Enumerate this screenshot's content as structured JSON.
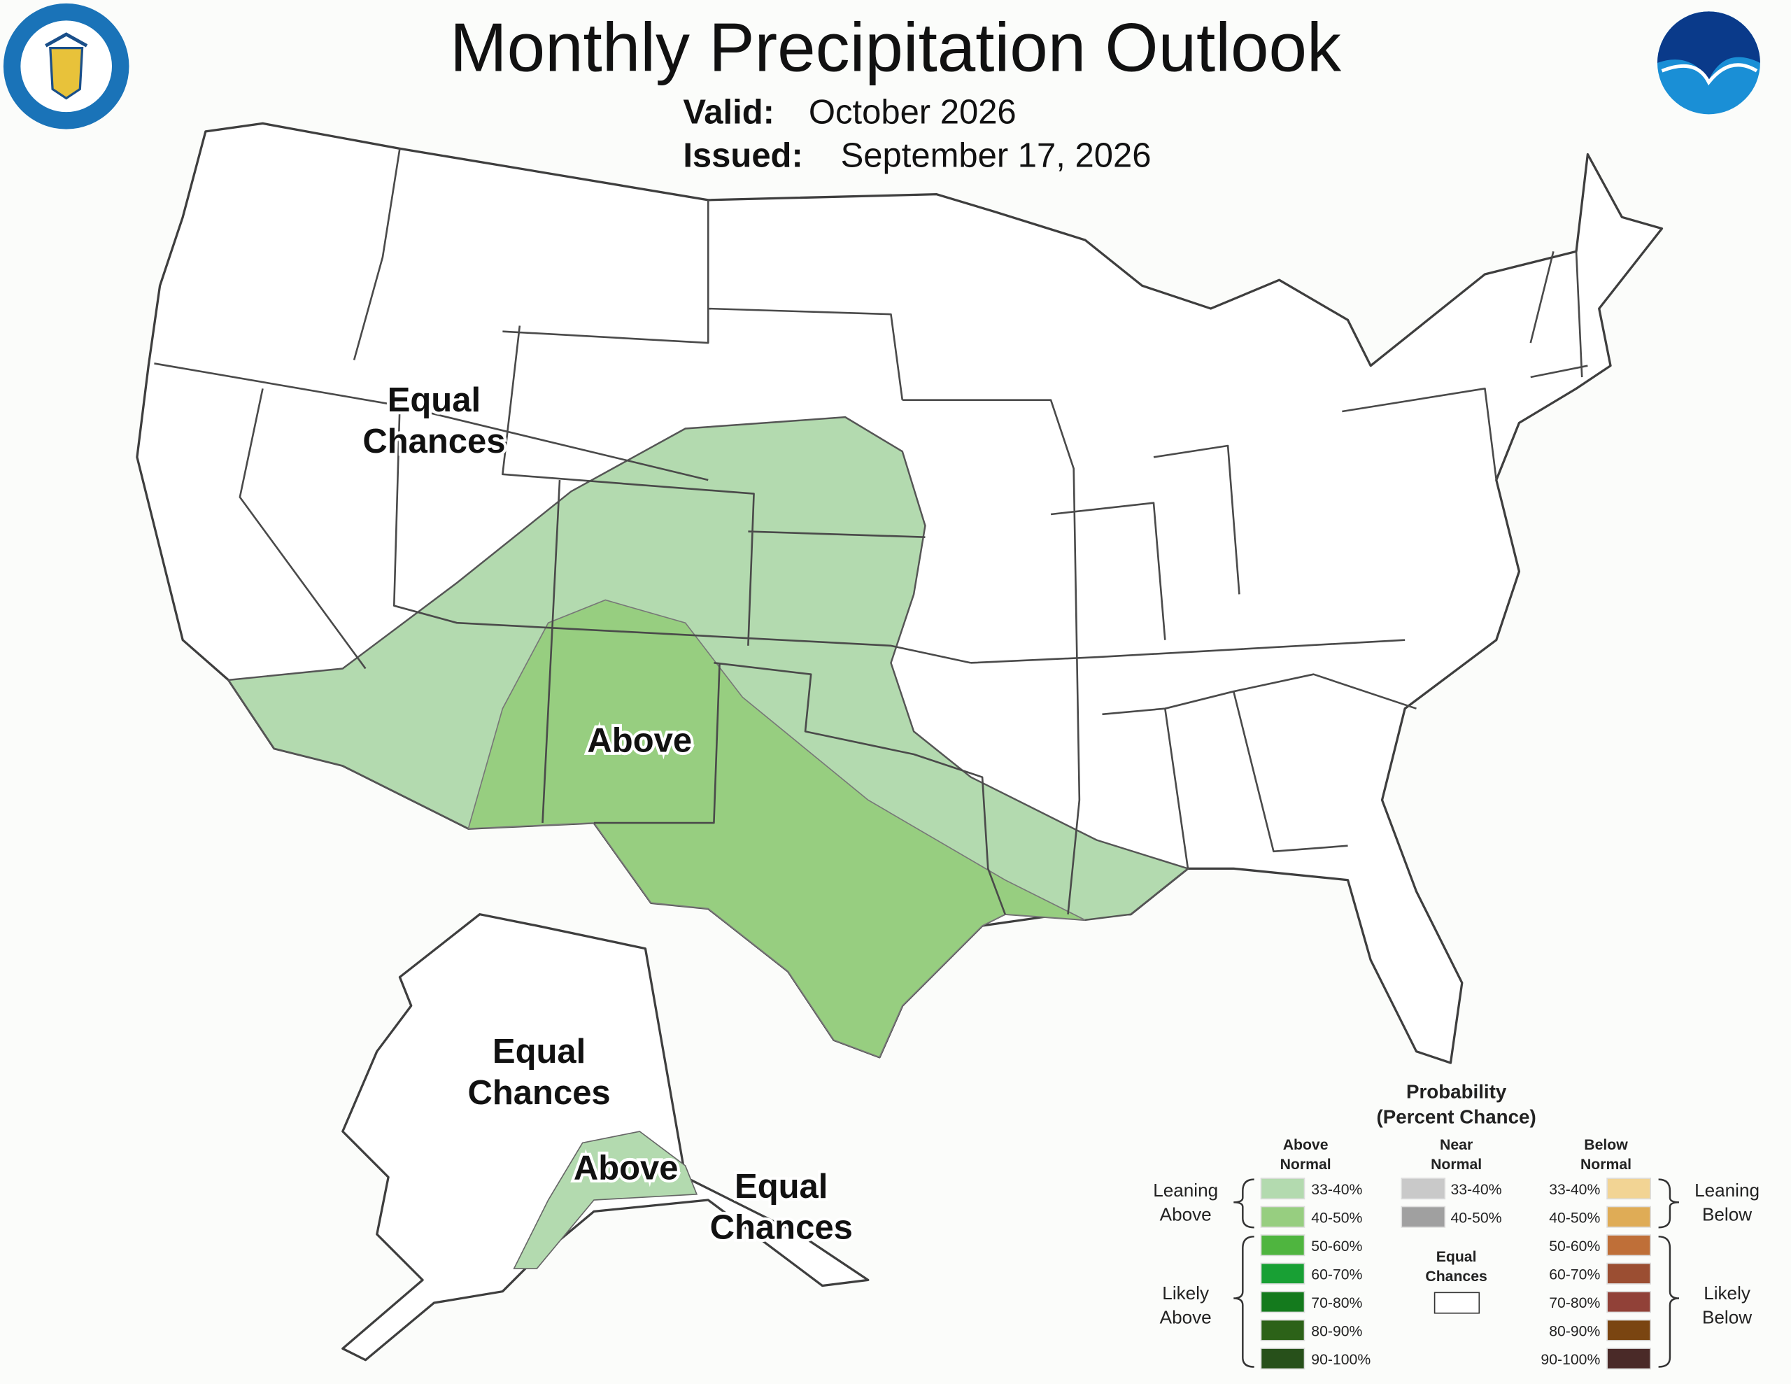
{
  "header": {
    "title": "Monthly Precipitation Outlook",
    "valid_label": "Valid:",
    "valid_value": "October 2026",
    "issued_label": "Issued:",
    "issued_value": "September 17, 2026"
  },
  "map_labels": [
    {
      "lines": [
        "Equal",
        "Chances"
      ]
    },
    {
      "lines": [
        "Above"
      ]
    },
    {
      "lines": [
        "Equal",
        "Chances"
      ]
    },
    {
      "lines": [
        "Above"
      ]
    },
    {
      "lines": [
        "Equal",
        "Chances"
      ]
    }
  ],
  "legend": {
    "title": [
      "Probability",
      "(Percent Chance)"
    ],
    "above": {
      "heading": [
        "Above",
        "Normal"
      ],
      "items": [
        {
          "label": "33-40%",
          "color": "#b3daaf"
        },
        {
          "label": "40-50%",
          "color": "#97ce80"
        },
        {
          "label": "50-60%",
          "color": "#4fb53f"
        },
        {
          "label": "60-70%",
          "color": "#18a034"
        },
        {
          "label": "70-80%",
          "color": "#147a1d"
        },
        {
          "label": "80-90%",
          "color": "#2c6218"
        },
        {
          "label": "90-100%",
          "color": "#27501a"
        }
      ]
    },
    "near": {
      "heading": [
        "Near",
        "Normal"
      ],
      "items": [
        {
          "label": "33-40%",
          "color": "#c9c9c9"
        },
        {
          "label": "40-50%",
          "color": "#a0a0a0"
        }
      ]
    },
    "equal": {
      "heading": [
        "Equal",
        "Chances"
      ],
      "color": "#ffffff"
    },
    "below": {
      "heading": [
        "Below",
        "Normal"
      ],
      "items": [
        {
          "label": "33-40%",
          "color": "#f2d494"
        },
        {
          "label": "40-50%",
          "color": "#dfac56"
        },
        {
          "label": "50-60%",
          "color": "#bf6f38"
        },
        {
          "label": "60-70%",
          "color": "#9b4e32"
        },
        {
          "label": "70-80%",
          "color": "#914138"
        },
        {
          "label": "80-90%",
          "color": "#7a4511"
        },
        {
          "label": "90-100%",
          "color": "#4a2a28"
        }
      ]
    },
    "groups": {
      "leaning_above": [
        "Leaning",
        "Above"
      ],
      "likely_above": [
        "Likely",
        "Above"
      ],
      "leaning_below": [
        "Leaning",
        "Below"
      ],
      "likely_below": [
        "Likely",
        "Below"
      ]
    }
  }
}
